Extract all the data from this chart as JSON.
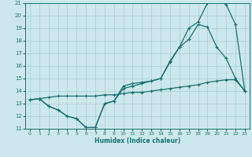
{
  "xlabel": "Humidex (Indice chaleur)",
  "xlim": [
    -0.5,
    23.5
  ],
  "ylim": [
    11,
    21
  ],
  "yticks": [
    11,
    12,
    13,
    14,
    15,
    16,
    17,
    18,
    19,
    20,
    21
  ],
  "xticks": [
    0,
    1,
    2,
    3,
    4,
    5,
    6,
    7,
    8,
    9,
    10,
    11,
    12,
    13,
    14,
    15,
    16,
    17,
    18,
    19,
    20,
    21,
    22,
    23
  ],
  "bg_color": "#cce8ec",
  "grid_color": "#aacdd4",
  "line_color": "#1a7070",
  "line1_y": [
    13.3,
    13.4,
    12.8,
    12.5,
    12.0,
    11.8,
    11.1,
    11.1,
    13.0,
    13.2,
    14.4,
    14.6,
    14.7,
    14.8,
    15.0,
    16.4,
    17.5,
    19.0,
    19.5,
    21.0,
    21.2,
    20.9,
    19.3,
    14.0
  ],
  "line2_y": [
    13.3,
    13.4,
    12.8,
    12.5,
    12.0,
    11.8,
    11.1,
    11.1,
    13.0,
    13.2,
    14.2,
    14.4,
    14.6,
    14.8,
    15.0,
    16.3,
    17.5,
    18.1,
    19.3,
    19.1,
    17.5,
    16.6,
    15.0,
    14.0
  ],
  "line3_y": [
    13.3,
    13.4,
    13.5,
    13.6,
    13.6,
    13.6,
    13.6,
    13.6,
    13.7,
    13.7,
    13.8,
    13.9,
    13.9,
    14.0,
    14.1,
    14.2,
    14.3,
    14.4,
    14.5,
    14.7,
    14.8,
    14.9,
    14.9,
    14.0
  ]
}
